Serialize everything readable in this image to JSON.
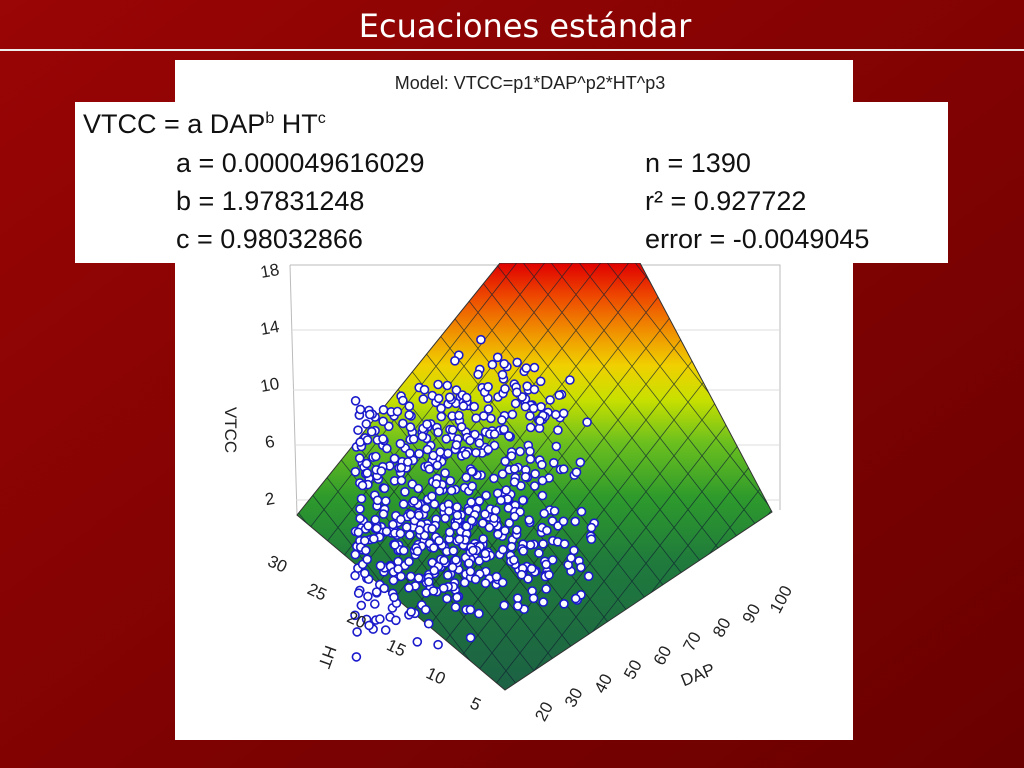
{
  "slide": {
    "title": "Ecuaciones estándar"
  },
  "figure": {
    "title": "Model: VTCC=p1*DAP^p2*HT^p3",
    "equation": {
      "lhs": "VTCC = a DAP",
      "exp_b": "b",
      "mid": " HT",
      "exp_c": "c"
    },
    "params_left": [
      "a = 0.000049616029",
      "b = 1.97831248",
      "c = 0.98032866"
    ],
    "params_right": [
      "n = 1390",
      "r² = 0.927722",
      "error = -0.0049045"
    ],
    "z_axis": {
      "label": "VTCC",
      "ticks": [
        18,
        14,
        10,
        6,
        2
      ]
    },
    "y_axis": {
      "label": "HT",
      "ticks": [
        30,
        25,
        20,
        15,
        10,
        5
      ]
    },
    "x_axis": {
      "label": "DAP",
      "ticks": [
        20,
        30,
        40,
        50,
        60,
        70,
        80,
        90,
        100
      ]
    }
  }
}
